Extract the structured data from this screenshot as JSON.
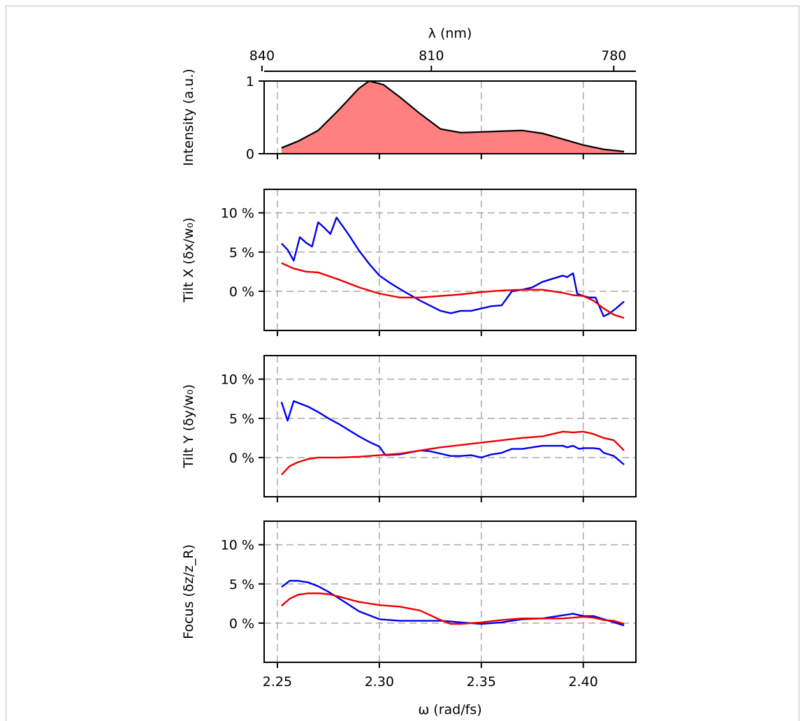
{
  "chart_data": [
    {
      "type": "area",
      "panel": "intensity",
      "ylabel": "Intensity (a.u.)",
      "top_axis": {
        "label": "λ (nm)",
        "ticks": [
          "840",
          "810",
          "780"
        ],
        "values_nm": [
          840,
          810,
          780
        ]
      },
      "yticks": [
        "0",
        "1"
      ],
      "ylim": [
        0,
        1.0
      ],
      "grid": true,
      "fill_color": "#ff8080",
      "line_color": "#000000",
      "series": [
        {
          "x": [
            2.252,
            2.26,
            2.27,
            2.28,
            2.29,
            2.295,
            2.302,
            2.31,
            2.32,
            2.33,
            2.34,
            2.35,
            2.36,
            2.37,
            2.38,
            2.39,
            2.4,
            2.41,
            2.42
          ],
          "values": [
            0.08,
            0.17,
            0.32,
            0.6,
            0.9,
            1.0,
            0.95,
            0.78,
            0.55,
            0.34,
            0.29,
            0.3,
            0.31,
            0.32,
            0.28,
            0.2,
            0.12,
            0.06,
            0.03
          ]
        }
      ]
    },
    {
      "type": "line",
      "panel": "tilt-x",
      "ylabel": "Tilt X (δx/w₀)",
      "yticks": [
        "0 %",
        "5 %",
        "10 %"
      ],
      "ylim": [
        -5,
        13
      ],
      "grid": true,
      "series": [
        {
          "color": "#0000ee",
          "x": [
            2.252,
            2.255,
            2.258,
            2.261,
            2.264,
            2.267,
            2.27,
            2.273,
            2.276,
            2.279,
            2.285,
            2.29,
            2.295,
            2.3,
            2.305,
            2.31,
            2.32,
            2.33,
            2.335,
            2.34,
            2.345,
            2.35,
            2.355,
            2.36,
            2.365,
            2.37,
            2.375,
            2.38,
            2.385,
            2.39,
            2.392,
            2.395,
            2.397,
            2.4,
            2.403,
            2.406,
            2.41,
            2.413,
            2.416,
            2.42
          ],
          "values": [
            6.1,
            5.3,
            3.9,
            6.9,
            6.2,
            5.7,
            8.8,
            8.1,
            7.3,
            9.4,
            7.2,
            5.2,
            3.5,
            2.0,
            1.1,
            0.3,
            -1.2,
            -2.5,
            -2.8,
            -2.5,
            -2.5,
            -2.2,
            -1.9,
            -1.8,
            0.0,
            0.2,
            0.5,
            1.2,
            1.6,
            2.0,
            1.8,
            2.3,
            -0.3,
            -0.6,
            -0.8,
            -0.8,
            -3.2,
            -2.8,
            -2.2,
            -1.3
          ]
        },
        {
          "color": "#ee0000",
          "x": [
            2.252,
            2.258,
            2.264,
            2.27,
            2.28,
            2.29,
            2.3,
            2.31,
            2.32,
            2.33,
            2.34,
            2.35,
            2.36,
            2.37,
            2.38,
            2.39,
            2.395,
            2.4,
            2.405,
            2.41,
            2.415,
            2.42
          ],
          "values": [
            3.6,
            2.9,
            2.5,
            2.4,
            1.5,
            0.5,
            -0.3,
            -0.8,
            -0.8,
            -0.6,
            -0.4,
            -0.1,
            0.1,
            0.2,
            0.2,
            -0.2,
            -0.5,
            -0.6,
            -1.2,
            -2.2,
            -3.0,
            -3.4
          ]
        }
      ]
    },
    {
      "type": "line",
      "panel": "tilt-y",
      "ylabel": "Tilt Y (δy/w₀)",
      "yticks": [
        "0 %",
        "5 %",
        "10 %"
      ],
      "ylim": [
        -5,
        13
      ],
      "grid": true,
      "series": [
        {
          "color": "#0000ee",
          "x": [
            2.252,
            2.255,
            2.258,
            2.265,
            2.27,
            2.275,
            2.28,
            2.29,
            2.295,
            2.3,
            2.303,
            2.31,
            2.32,
            2.325,
            2.33,
            2.335,
            2.34,
            2.345,
            2.35,
            2.355,
            2.36,
            2.365,
            2.37,
            2.375,
            2.38,
            2.385,
            2.39,
            2.392,
            2.395,
            2.398,
            2.4,
            2.405,
            2.408,
            2.41,
            2.415,
            2.42
          ],
          "values": [
            7.1,
            4.7,
            7.2,
            6.5,
            5.8,
            5.0,
            4.3,
            2.7,
            2.0,
            1.4,
            0.3,
            0.4,
            0.9,
            0.8,
            0.5,
            0.2,
            0.2,
            0.3,
            0.0,
            0.4,
            0.6,
            1.1,
            1.1,
            1.3,
            1.5,
            1.5,
            1.5,
            1.3,
            1.5,
            1.1,
            1.2,
            1.2,
            1.1,
            0.6,
            0.2,
            -0.9
          ]
        },
        {
          "color": "#ee0000",
          "x": [
            2.252,
            2.256,
            2.26,
            2.265,
            2.27,
            2.28,
            2.29,
            2.3,
            2.31,
            2.32,
            2.33,
            2.34,
            2.35,
            2.36,
            2.37,
            2.38,
            2.385,
            2.39,
            2.395,
            2.4,
            2.405,
            2.41,
            2.415,
            2.42
          ],
          "values": [
            -2.2,
            -1.1,
            -0.6,
            -0.2,
            0.0,
            0.0,
            0.1,
            0.3,
            0.5,
            0.9,
            1.3,
            1.6,
            1.9,
            2.2,
            2.5,
            2.7,
            3.0,
            3.3,
            3.2,
            3.3,
            3.0,
            2.5,
            2.2,
            0.9
          ]
        }
      ]
    },
    {
      "type": "line",
      "panel": "focus",
      "ylabel": "Focus (δz/z_R)",
      "yticks": [
        "0 %",
        "5 %",
        "10 %"
      ],
      "xticks": [
        "2.25",
        "2.30",
        "2.35",
        "2.40"
      ],
      "xlabel": "ω (rad/fs)",
      "xlim": [
        2.2435,
        2.4258
      ],
      "ylim": [
        -5,
        13
      ],
      "grid": true,
      "series": [
        {
          "color": "#0000ee",
          "x": [
            2.252,
            2.256,
            2.26,
            2.265,
            2.27,
            2.275,
            2.28,
            2.29,
            2.3,
            2.31,
            2.32,
            2.33,
            2.34,
            2.35,
            2.36,
            2.37,
            2.38,
            2.39,
            2.395,
            2.4,
            2.405,
            2.41,
            2.415,
            2.42
          ],
          "values": [
            4.6,
            5.4,
            5.4,
            5.2,
            4.7,
            4.0,
            3.2,
            1.5,
            0.5,
            0.3,
            0.3,
            0.3,
            0.1,
            -0.1,
            0.1,
            0.5,
            0.6,
            1.0,
            1.2,
            0.9,
            0.9,
            0.5,
            0.1,
            -0.3
          ]
        },
        {
          "color": "#ee0000",
          "x": [
            2.252,
            2.256,
            2.26,
            2.265,
            2.27,
            2.275,
            2.28,
            2.29,
            2.3,
            2.31,
            2.32,
            2.33,
            2.335,
            2.34,
            2.35,
            2.36,
            2.37,
            2.38,
            2.39,
            2.4,
            2.405,
            2.41,
            2.415,
            2.42
          ],
          "values": [
            2.2,
            3.1,
            3.6,
            3.8,
            3.8,
            3.7,
            3.4,
            2.7,
            2.3,
            2.1,
            1.6,
            0.4,
            -0.1,
            -0.1,
            0.1,
            0.4,
            0.6,
            0.6,
            0.6,
            0.8,
            0.7,
            0.4,
            0.3,
            -0.1
          ]
        }
      ]
    }
  ]
}
